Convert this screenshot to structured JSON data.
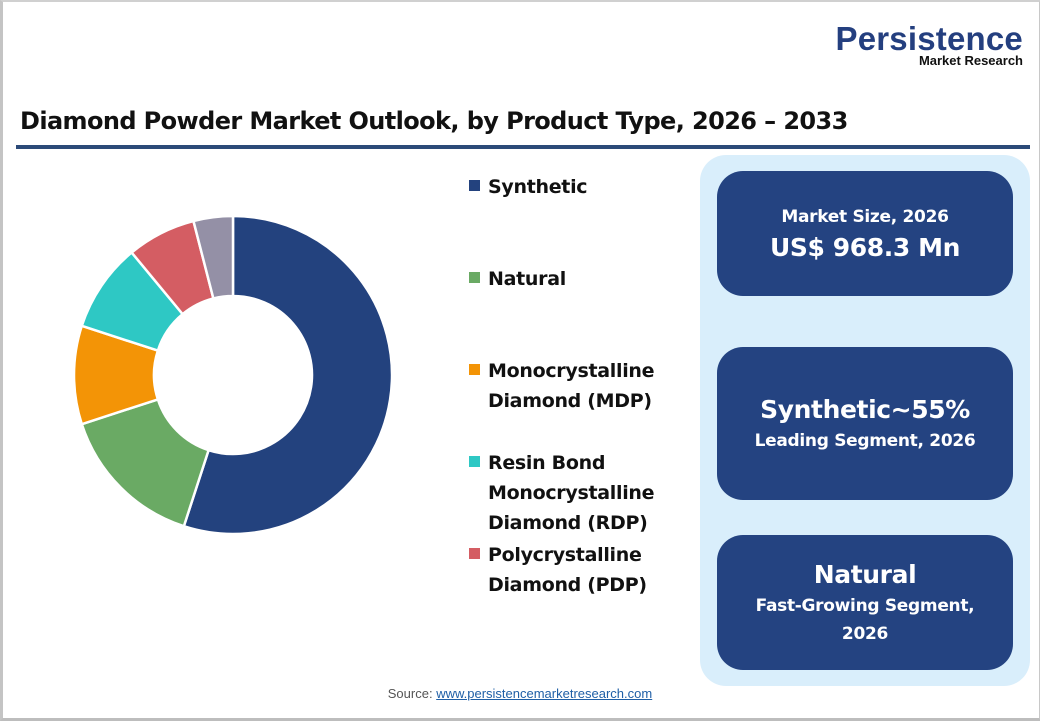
{
  "logo": {
    "main": "Persistence",
    "sub": "Market Research"
  },
  "title": "Diamond Powder Market Outlook, by Product Type, 2026 – 2033",
  "legend": [
    {
      "label": "Synthetic",
      "color": "#23427e"
    },
    {
      "label": "Natural",
      "color": "#6aaa64"
    },
    {
      "label": "Monocrystalline\nDiamond (MDP)",
      "color": "#f39406"
    },
    {
      "label": "Resin Bond\nMonocrystalline\nDiamond (RDP)",
      "color": "#2ec8c4"
    },
    {
      "label": "Polycrystalline\nDiamond (PDP)",
      "color": "#d45d63"
    }
  ],
  "cards": [
    {
      "line1": "Market Size, 2026",
      "line2": "US$ 968.3 Mn"
    },
    {
      "line1": "Synthetic~55%",
      "line2": "Leading Segment, 2026"
    },
    {
      "line1": "Natural",
      "line2": "Fast-Growing Segment,\n2026"
    }
  ],
  "source": {
    "label": "Source: ",
    "link": "www.persistencemarketresearch.com"
  },
  "chart_data": {
    "type": "pie",
    "variant": "donut",
    "title": "Diamond Powder Market Outlook, by Product Type, 2026 – 2033",
    "categories": [
      "Synthetic",
      "Natural",
      "Monocrystalline Diamond (MDP)",
      "Resin Bond Monocrystalline Diamond (RDP)",
      "Polycrystalline Diamond (PDP)",
      "Other (unlabeled)"
    ],
    "values": [
      55,
      15,
      10,
      9,
      7,
      4
    ],
    "colors": [
      "#23427e",
      "#6aaa64",
      "#f39406",
      "#2ec8c4",
      "#d45d63",
      "#9490a6"
    ],
    "unit": "%",
    "start_angle": "12 o'clock, clockwise",
    "legend_position": "right",
    "annotations": [
      "Market Size, 2026: US$ 968.3 Mn",
      "Synthetic~55% Leading Segment, 2026",
      "Natural Fast-Growing Segment, 2026"
    ]
  }
}
